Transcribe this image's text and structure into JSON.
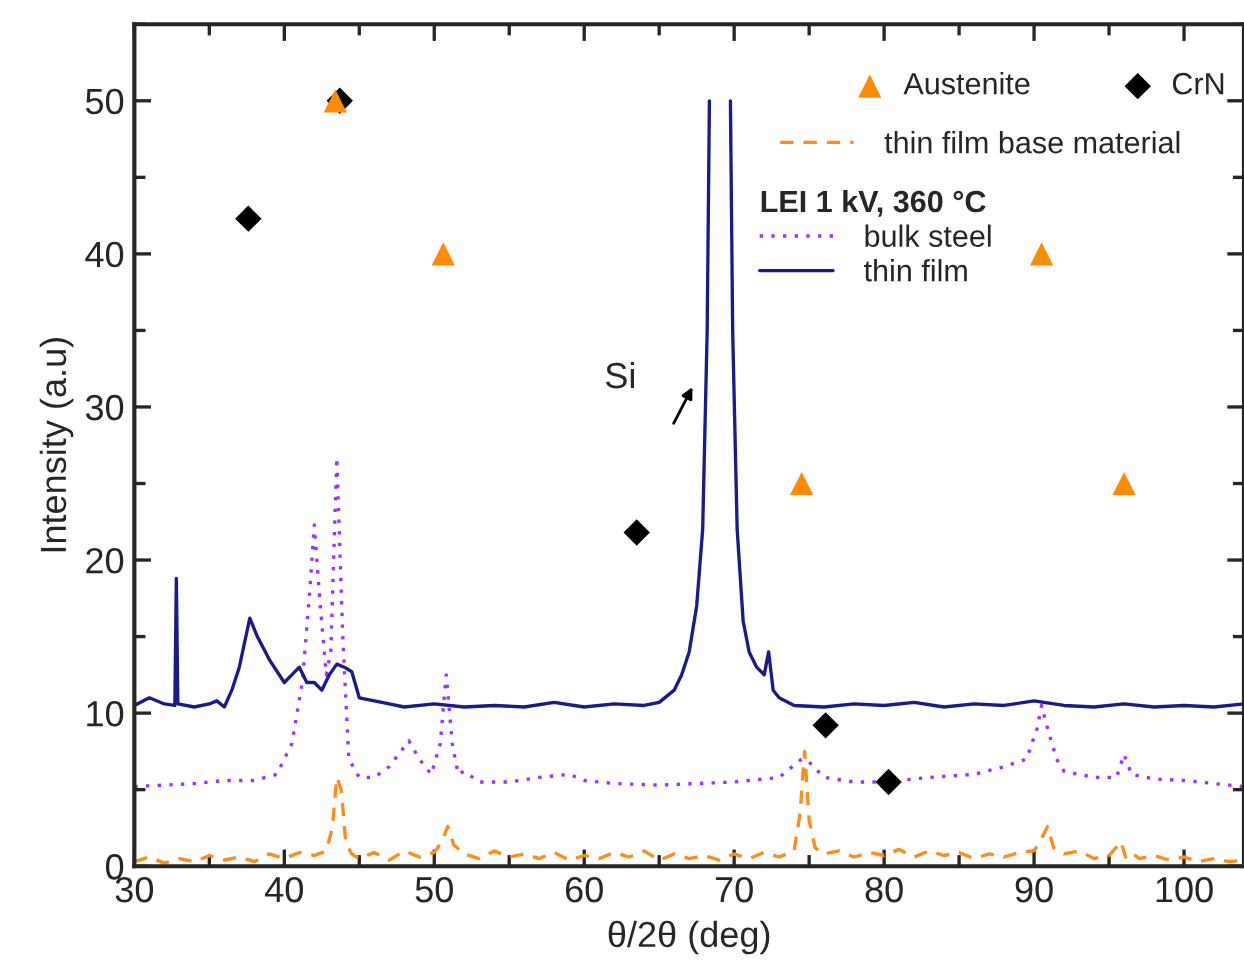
{
  "chart_data": {
    "type": "line",
    "xlabel": "θ/2θ (deg)",
    "ylabel": "Intensity (a.u)",
    "legend_title": "LEI 1 kV, 360 °C",
    "xlim": [
      30,
      104
    ],
    "ylim": [
      0,
      55
    ],
    "xticks": [
      30,
      40,
      50,
      60,
      70,
      80,
      90,
      100
    ],
    "yticks": [
      0,
      10,
      20,
      30,
      40,
      50
    ],
    "grid": false,
    "legend": "top right",
    "annotations": [
      "Si"
    ],
    "series": [
      {
        "name": "Austenite",
        "type": "scatter",
        "marker": "triangle",
        "color": "#ff8c00",
        "x": [
          43.4,
          50.6,
          74.5,
          90.5,
          96.0
        ],
        "values": [
          50.0,
          40.0,
          25.0,
          40.0,
          25.0
        ]
      },
      {
        "name": "CrN",
        "type": "scatter",
        "marker": "diamond",
        "color": "#000000",
        "x": [
          37.6,
          43.7,
          63.5,
          76.1,
          80.3
        ],
        "values": [
          42.3,
          50.0,
          21.8,
          9.2,
          5.5
        ]
      },
      {
        "name": "thin film base material",
        "line_style": "dashed",
        "color": "#ff8c1a",
        "x": [
          30,
          31,
          32,
          33,
          34,
          35,
          36,
          37,
          38,
          39,
          40,
          41,
          42,
          42.8,
          43.2,
          43.5,
          43.8,
          44.1,
          44.5,
          45,
          46,
          47,
          48,
          49,
          50,
          50.5,
          50.9,
          51.3,
          52,
          53,
          54,
          55,
          56,
          57,
          58,
          59,
          60,
          61,
          62,
          63,
          64,
          65,
          66,
          67,
          68,
          69,
          70,
          71,
          72,
          73,
          74,
          74.4,
          74.7,
          75.0,
          75.4,
          76,
          77,
          78,
          79,
          80,
          81,
          82,
          83,
          84,
          85,
          86,
          87,
          88,
          89,
          90,
          90.5,
          90.9,
          91.3,
          92,
          93,
          94,
          95,
          95.8,
          96.1,
          96.5,
          97,
          98,
          99,
          100,
          101,
          102,
          103,
          104
        ],
        "values": [
          0.3,
          0.6,
          0.2,
          0.5,
          0.3,
          0.7,
          0.4,
          0.6,
          0.3,
          0.8,
          0.5,
          0.9,
          0.7,
          1.0,
          2.5,
          5.8,
          5.0,
          1.5,
          0.8,
          0.5,
          0.9,
          0.4,
          1.0,
          0.6,
          0.9,
          1.6,
          2.6,
          1.4,
          0.8,
          0.5,
          1.0,
          0.6,
          0.8,
          0.5,
          0.9,
          0.4,
          0.7,
          0.5,
          0.9,
          0.6,
          1.0,
          0.4,
          0.8,
          0.5,
          0.7,
          0.4,
          0.8,
          0.5,
          0.9,
          0.6,
          1.0,
          3.5,
          7.5,
          3.0,
          1.2,
          0.8,
          1.0,
          0.6,
          0.9,
          0.7,
          1.1,
          0.6,
          1.0,
          0.7,
          0.9,
          0.5,
          0.8,
          0.6,
          0.9,
          1.0,
          1.8,
          2.6,
          1.2,
          0.8,
          1.0,
          0.5,
          0.7,
          1.6,
          0.6,
          0.9,
          0.5,
          0.7,
          0.4,
          0.6,
          0.3,
          0.5,
          0.3,
          0.4
        ]
      },
      {
        "name": "bulk steel",
        "line_style": "dotted",
        "color": "#9b30ff",
        "x": [
          30,
          32,
          34,
          36,
          38,
          39.5,
          40.5,
          41.2,
          41.7,
          42.0,
          42.4,
          42.8,
          43.1,
          43.5,
          43.9,
          44.3,
          45,
          46,
          47,
          48.3,
          49,
          49.8,
          50.4,
          50.8,
          51.2,
          51.6,
          52,
          53,
          55,
          57,
          59,
          60,
          62,
          65,
          70,
          73,
          74.5,
          75,
          76,
          78,
          80,
          83,
          86,
          88,
          89.5,
          90.2,
          90.5,
          90.9,
          91.5,
          92,
          94,
          95.5,
          96,
          96.5,
          98,
          100,
          102,
          104
        ],
        "values": [
          5.2,
          5.3,
          5.4,
          5.6,
          5.6,
          6.0,
          8.0,
          12.0,
          18.0,
          22.3,
          17.0,
          12.5,
          14.0,
          26.7,
          15.0,
          7.0,
          5.8,
          5.8,
          6.5,
          8.2,
          7.0,
          6.0,
          8.0,
          12.5,
          8.0,
          6.0,
          6.2,
          5.5,
          5.5,
          5.8,
          6.0,
          5.6,
          5.4,
          5.3,
          5.5,
          5.8,
          7.0,
          6.8,
          5.8,
          5.5,
          5.5,
          5.8,
          6.0,
          6.5,
          7.0,
          9.0,
          10.5,
          9.0,
          7.0,
          6.2,
          5.8,
          5.8,
          7.3,
          6.0,
          5.7,
          5.6,
          5.4,
          5.2
        ]
      },
      {
        "name": "thin film",
        "line_style": "solid",
        "color": "#1a1a8c",
        "x": [
          30,
          31,
          32,
          32.7,
          32.8,
          32.9,
          34,
          35,
          35.5,
          36,
          36.5,
          37,
          37.7,
          38.2,
          39,
          40,
          40.5,
          41,
          41.5,
          42,
          42.5,
          43,
          43.5,
          44,
          44.5,
          45,
          46,
          47,
          48,
          50,
          52,
          54,
          56,
          58,
          60,
          62,
          64,
          65,
          66,
          66.5,
          67,
          67.5,
          67.9,
          68.2,
          68.35,
          68.4,
          69.7,
          69.75,
          69.9,
          70.2,
          70.6,
          71,
          71.5,
          72,
          72.3,
          72.6,
          73,
          74,
          76,
          78,
          80,
          82,
          84,
          86,
          88,
          90,
          92,
          94,
          96,
          98,
          100,
          102,
          104
        ],
        "values": [
          10.5,
          11.0,
          10.6,
          10.5,
          18.8,
          10.6,
          10.4,
          10.6,
          10.8,
          10.4,
          11.5,
          13.0,
          16.2,
          15.0,
          13.5,
          12.0,
          12.5,
          13.0,
          12.0,
          12.0,
          11.5,
          12.5,
          13.2,
          13.0,
          12.7,
          11.0,
          10.8,
          10.6,
          10.4,
          10.6,
          10.4,
          10.5,
          10.4,
          10.7,
          10.4,
          10.6,
          10.5,
          10.7,
          11.5,
          12.5,
          14.0,
          17.0,
          22.0,
          35.0,
          50.0,
          null,
          null,
          50.0,
          35.0,
          22.0,
          16.0,
          14.0,
          13.0,
          12.5,
          14.0,
          11.5,
          11.0,
          10.5,
          10.4,
          10.6,
          10.5,
          10.7,
          10.4,
          10.6,
          10.5,
          10.8,
          10.5,
          10.4,
          10.6,
          10.4,
          10.5,
          10.4,
          10.6
        ]
      }
    ]
  }
}
